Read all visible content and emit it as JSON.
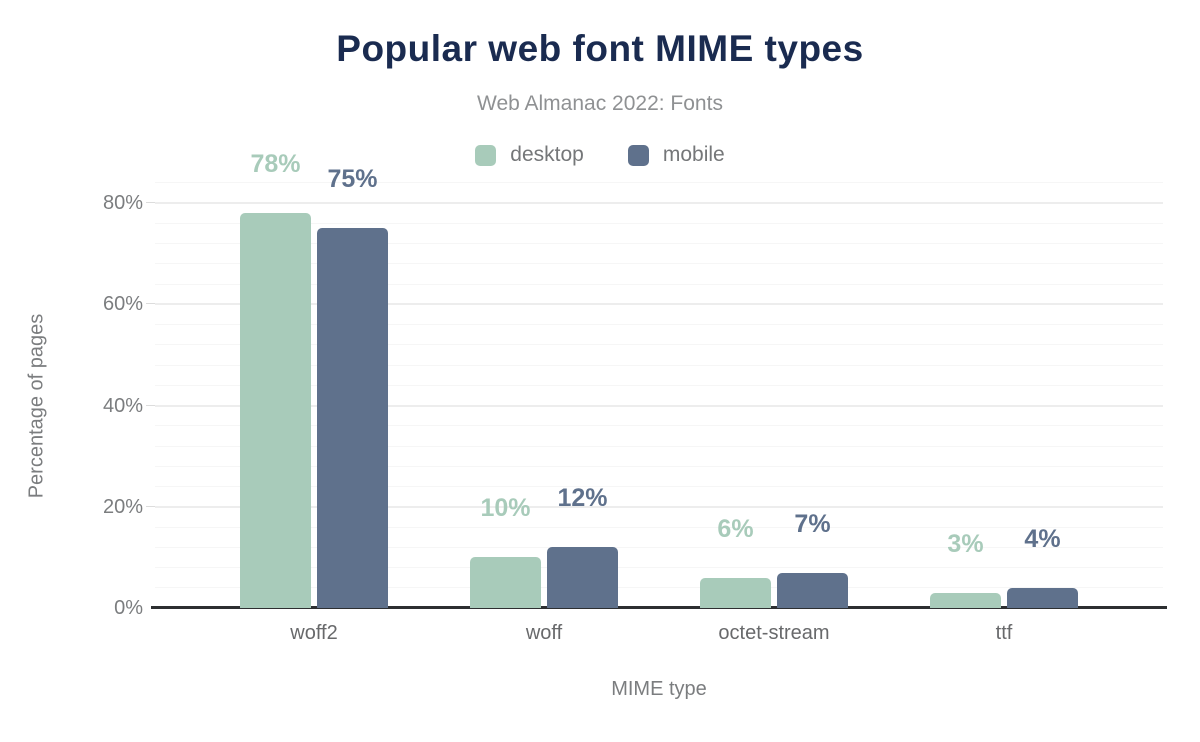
{
  "header": {
    "title": "Popular web font MIME types",
    "subtitle": "Web Almanac 2022: Fonts"
  },
  "chart_data": {
    "type": "bar",
    "title": "Popular web font MIME types",
    "subtitle": "Web Almanac 2022: Fonts",
    "categories": [
      "woff2",
      "woff",
      "octet-stream",
      "ttf"
    ],
    "series": [
      {
        "name": "desktop",
        "color": "#a8cbba",
        "values": [
          78,
          10,
          6,
          3
        ]
      },
      {
        "name": "mobile",
        "color": "#5f718c",
        "values": [
          75,
          12,
          7,
          4
        ]
      }
    ],
    "xlabel": "MIME type",
    "ylabel": "Percentage of pages",
    "ylim": [
      0,
      86
    ],
    "yticks": [
      0,
      20,
      40,
      60,
      80
    ],
    "ytick_suffix": "%",
    "value_label_suffix": "%",
    "grid": true,
    "minor_grid_step": 4,
    "legend_position": "top",
    "value_labels": true
  },
  "colors": {
    "title": "#1a2b50",
    "subtitle": "#8f9193",
    "axis_line": "#2d2f31",
    "tick_label": "#7b7d7f",
    "category_label": "#68696b",
    "major_grid": "#ededed",
    "minor_grid": "#f6f6f6",
    "background": "#ffffff"
  }
}
